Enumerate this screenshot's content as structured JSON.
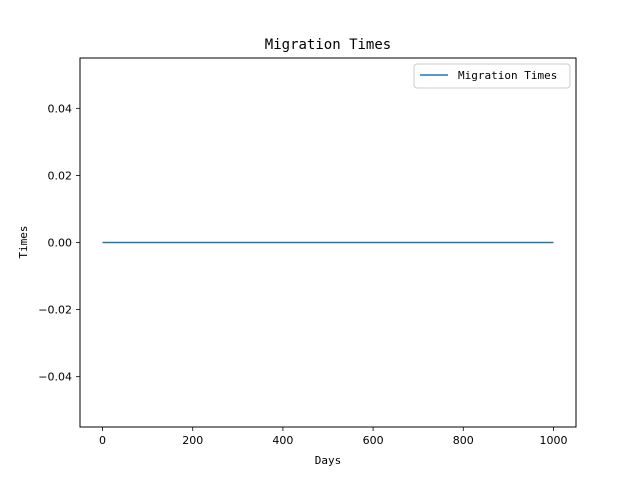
{
  "chart_data": {
    "type": "line",
    "title": "Migration Times",
    "xlabel": "Days",
    "ylabel": "Times",
    "xlim": [
      -50,
      1050
    ],
    "ylim": [
      -0.055,
      0.055
    ],
    "xticks": [
      0,
      200,
      400,
      600,
      800,
      1000
    ],
    "yticks": [
      -0.04,
      -0.02,
      0.0,
      0.02,
      0.04
    ],
    "xtick_labels": [
      "0",
      "200",
      "400",
      "600",
      "800",
      "1000"
    ],
    "ytick_labels": [
      "−0.04",
      "−0.02",
      "0.00",
      "0.02",
      "0.04"
    ],
    "grid": false,
    "legend_position": "top-right",
    "series": [
      {
        "name": "Migration Times",
        "color": "#1f77b4",
        "x": [
          0,
          1000
        ],
        "y": [
          0,
          0
        ]
      }
    ]
  }
}
